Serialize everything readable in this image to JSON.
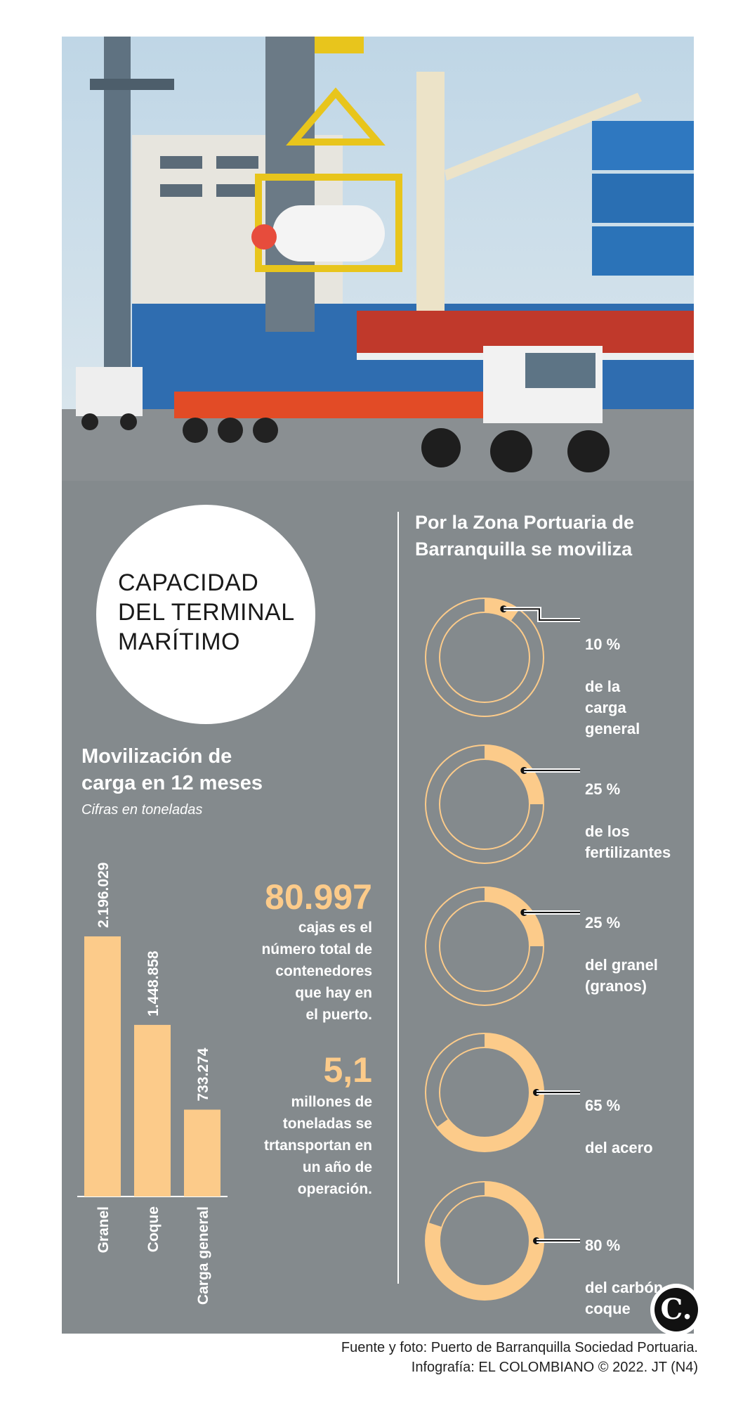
{
  "title": "CAPACIDAD\nDEL TERMINAL\nMARÍTIMO",
  "cargo_section": {
    "heading": "Movilización de\ncarga en 12 meses",
    "subtitle": "Cifras en toneladas"
  },
  "stats": [
    {
      "number": "80.997",
      "text": "cajas es el\nnúmero total de\ncontenedores\nque hay en\nel puerto."
    },
    {
      "number": "5,1",
      "text": "millones de\ntoneladas se\ntrtansportan en\nun año de\noperación."
    }
  ],
  "port_section": {
    "heading": "Por la Zona Portuaria de\nBarranquilla se moviliza"
  },
  "credits": {
    "line1": "Fuente y foto: Puerto de Barranquilla Sociedad Portuaria.",
    "line2": "Infografía: EL COLOMBIANO © 2022. JT (N4)"
  },
  "logo": "C.",
  "colors": {
    "panel": "#848a8d",
    "accent": "#fccb8a",
    "text": "#ffffff"
  },
  "chart_data": [
    {
      "type": "bar",
      "categories": [
        "Granel",
        "Coque",
        "Carga general"
      ],
      "values": [
        2196029,
        1448858,
        733274
      ],
      "value_labels": [
        "2.196.029",
        "1.448.858",
        "733.274"
      ],
      "ylim": [
        0,
        2196029
      ]
    },
    {
      "type": "pie",
      "style": "donut-rings",
      "items": [
        {
          "percent": 10,
          "value_label": "10 %",
          "label": "de la\ncarga\ngeneral"
        },
        {
          "percent": 25,
          "value_label": "25 %",
          "label": "de los\nfertilizantes"
        },
        {
          "percent": 25,
          "value_label": "25 %",
          "label": "del granel\n(granos)"
        },
        {
          "percent": 65,
          "value_label": "65 %",
          "label": "del acero"
        },
        {
          "percent": 80,
          "value_label": "80 %",
          "label": "del carbón\ncoque"
        }
      ]
    }
  ]
}
